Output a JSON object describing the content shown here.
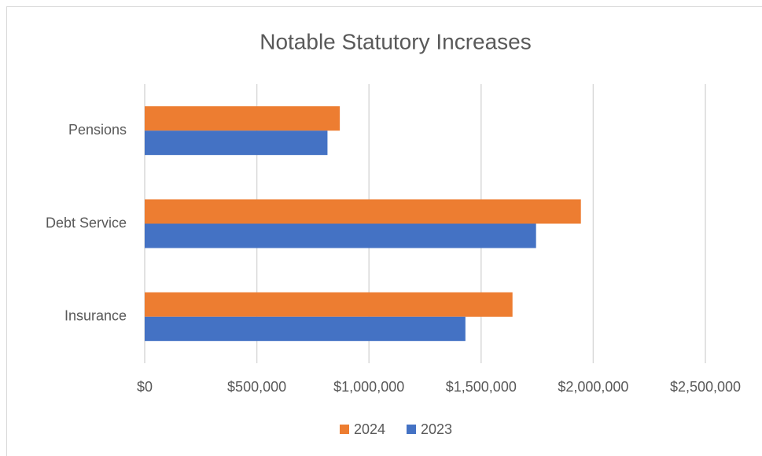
{
  "chart_data": {
    "type": "hbar",
    "title": "Notable Statutory Increases",
    "categories": [
      "Pensions",
      "Debt Service",
      "Insurance"
    ],
    "series": [
      {
        "name": "2024",
        "color": "#ed7d31",
        "values": [
          870000,
          1945000,
          1640000
        ]
      },
      {
        "name": "2023",
        "color": "#4472c4",
        "values": [
          815000,
          1745000,
          1430000
        ]
      }
    ],
    "xlim": [
      0,
      2500000
    ],
    "xticks": [
      {
        "value": 0,
        "label": "$0"
      },
      {
        "value": 500000,
        "label": "$500,000"
      },
      {
        "value": 1000000,
        "label": "$1,000,000"
      },
      {
        "value": 1500000,
        "label": "$1,500,000"
      },
      {
        "value": 2000000,
        "label": "$2,000,000"
      },
      {
        "value": 2500000,
        "label": "$2,500,000"
      }
    ],
    "grid": true,
    "legend": "bottom"
  }
}
